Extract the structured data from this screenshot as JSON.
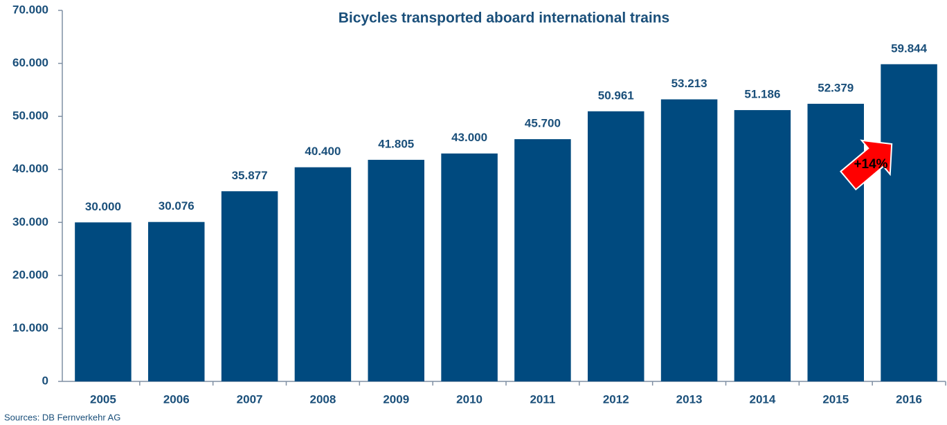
{
  "chart_data": {
    "type": "bar",
    "title": "Bicycles transported aboard international trains",
    "categories": [
      "2005",
      "2006",
      "2007",
      "2008",
      "2009",
      "2010",
      "2011",
      "2012",
      "2013",
      "2014",
      "2015",
      "2016"
    ],
    "values": [
      30000,
      30076,
      35877,
      40400,
      41805,
      43000,
      45700,
      50961,
      53213,
      51186,
      52379,
      59844
    ],
    "value_labels": [
      "30.000",
      "30.076",
      "35.877",
      "40.400",
      "41.805",
      "43.000",
      "45.700",
      "50.961",
      "53.213",
      "51.186",
      "52.379",
      "59.844"
    ],
    "color": "#004a7f",
    "ylim": [
      0,
      70000
    ],
    "yticks": [
      0,
      {
        "value": 10000,
        "label": "10.000"
      },
      {
        "value": 20000,
        "label": "20.000"
      },
      {
        "value": 30000,
        "label": "30.000"
      },
      {
        "value": 40000,
        "label": "40.000"
      },
      {
        "value": 50000,
        "label": "50.000"
      },
      {
        "value": 60000,
        "label": "60.000"
      },
      {
        "value": 70000,
        "label": "70.000"
      }
    ],
    "grid": false,
    "annotation": "+14%",
    "source": "Sources: DB Fernverkehr AG"
  }
}
